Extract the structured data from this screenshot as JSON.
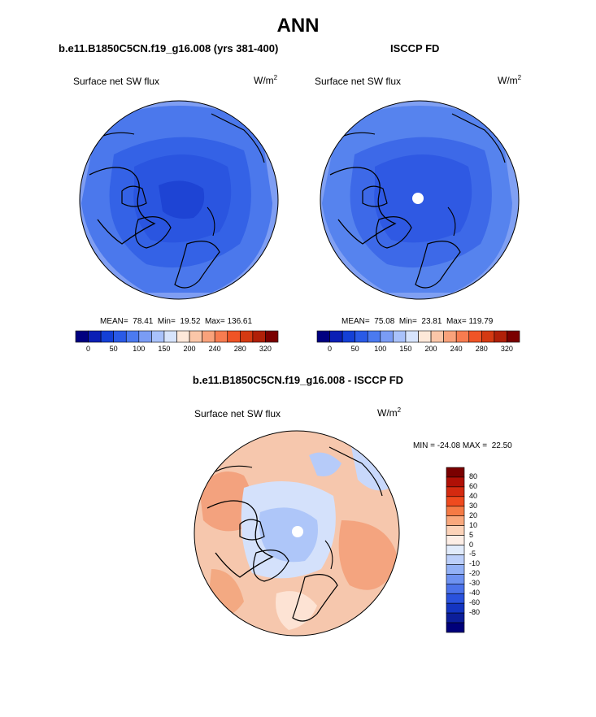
{
  "title": "ANN",
  "panels": {
    "left": {
      "case": "b.e11.B1850C5CN.f19_g16.008 (yrs 381-400)",
      "variable": "Surface net SW flux",
      "units_base": "W/m",
      "units_exp": "2",
      "stats": "MEAN=  78.41  Min=  19.52  Max= 136.61"
    },
    "right": {
      "case": "ISCCP FD",
      "variable": "Surface net SW flux",
      "units_base": "W/m",
      "units_exp": "2",
      "stats": "MEAN=  75.08  Min=  23.81  Max= 119.79"
    },
    "diff": {
      "case": "b.e11.B1850C5CN.f19_g16.008 - ISCCP FD",
      "variable": "Surface net SW flux",
      "units_base": "W/m",
      "units_exp": "2",
      "stats": "MIN = -24.08 MAX =  22.50"
    }
  },
  "colorbar_abs": {
    "colors": [
      "#000080",
      "#0b1fb5",
      "#1440d6",
      "#2a5ae6",
      "#4b7af0",
      "#7a9cf5",
      "#a9c2fb",
      "#d7e4fc",
      "#fde8d9",
      "#fbc6a8",
      "#f9a27b",
      "#f77c50",
      "#ef5426",
      "#d43a12",
      "#b02008",
      "#7a0000"
    ],
    "labels": [
      "0",
      "50",
      "100",
      "150",
      "200",
      "240",
      "280",
      "320"
    ]
  },
  "colorbar_diff": {
    "colors": [
      "#7a0000",
      "#b01006",
      "#d42a10",
      "#ef4a1e",
      "#f57a45",
      "#f9a87d",
      "#fcd3b9",
      "#fdeee6",
      "#e1ebfb",
      "#bccffa",
      "#93b1f6",
      "#6e92f1",
      "#4b72ea",
      "#2a52dd",
      "#1435c1",
      "#0c1e9a",
      "#00007a"
    ],
    "labels": [
      "80",
      "60",
      "40",
      "30",
      "20",
      "10",
      "5",
      "0",
      "-5",
      "-10",
      "-20",
      "-30",
      "-40",
      "-60",
      "-80"
    ]
  },
  "map_colors": {
    "ocean_edge": "#7f9ef3",
    "mid": "#4773ec",
    "inner": "#2f59e4",
    "core": "#1e44d4",
    "diff_pos": "#f6c3a8",
    "diff_pos_strong": "#f4a47f",
    "diff_neg": "#c5d6fb",
    "diff_neg_strong": "#9cb7f7",
    "diff_neutral": "#fdf0e8"
  }
}
